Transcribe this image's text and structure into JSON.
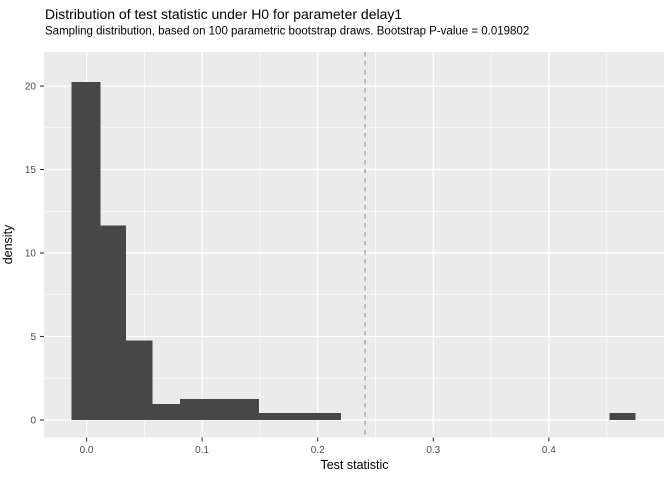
{
  "chart_data": {
    "type": "bar",
    "subtype": "histogram",
    "title": "Distribution of test statistic under H0 for parameter delay1",
    "subtitle": "Sampling distribution, based on 100 parametric bootstrap draws. Bootstrap P-value = 0.019802",
    "xlabel": "Test statistic",
    "ylabel": "density",
    "parameter": "delay1",
    "n_bootstrap_draws": 100,
    "p_value": 0.019802,
    "xlim": [
      -0.0368,
      0.4996
    ],
    "ylim": [
      -1.05,
      22.04
    ],
    "grid": true,
    "legend": false,
    "x_ticks": [
      {
        "value": 0.0,
        "label": "0.0"
      },
      {
        "value": 0.1,
        "label": "0.1"
      },
      {
        "value": 0.2,
        "label": "0.2"
      },
      {
        "value": 0.3,
        "label": "0.3"
      },
      {
        "value": 0.4,
        "label": "0.4"
      }
    ],
    "y_ticks": [
      {
        "value": 0,
        "label": "0"
      },
      {
        "value": 5,
        "label": "5"
      },
      {
        "value": 10,
        "label": "10"
      },
      {
        "value": 15,
        "label": "15"
      },
      {
        "value": 20,
        "label": "20"
      }
    ],
    "x_minor_gridlines": [
      0.05,
      0.15,
      0.25,
      0.35,
      0.45
    ],
    "y_minor_gridlines": [
      2.5,
      7.5,
      12.5,
      17.5
    ],
    "bins": [
      {
        "x0": -0.013,
        "x1": 0.012,
        "density": 20.25
      },
      {
        "x0": 0.012,
        "x1": 0.034,
        "density": 11.65
      },
      {
        "x0": 0.034,
        "x1": 0.057,
        "density": 4.75
      },
      {
        "x0": 0.057,
        "x1": 0.081,
        "density": 0.95
      },
      {
        "x0": 0.081,
        "x1": 0.104,
        "density": 1.26
      },
      {
        "x0": 0.104,
        "x1": 0.126,
        "density": 1.26
      },
      {
        "x0": 0.126,
        "x1": 0.149,
        "density": 1.26
      },
      {
        "x0": 0.149,
        "x1": 0.173,
        "density": 0.43
      },
      {
        "x0": 0.173,
        "x1": 0.196,
        "density": 0.43
      },
      {
        "x0": 0.196,
        "x1": 0.22,
        "density": 0.43
      },
      {
        "x0": 0.4525,
        "x1": 0.475,
        "density": 0.43
      }
    ],
    "vline": {
      "x": 0.241,
      "style": "dashed",
      "color": "#A0A0A0"
    },
    "colors": {
      "bar_fill": "#474747",
      "panel_background": "#EBEBEB",
      "gridline_major": "#FFFFFF",
      "gridline_minor": "#FFFFFF",
      "tick_mark": "#333333",
      "tick_label": "#4D4D4D",
      "axis_title": "#000000",
      "title_text": "#000000"
    }
  }
}
